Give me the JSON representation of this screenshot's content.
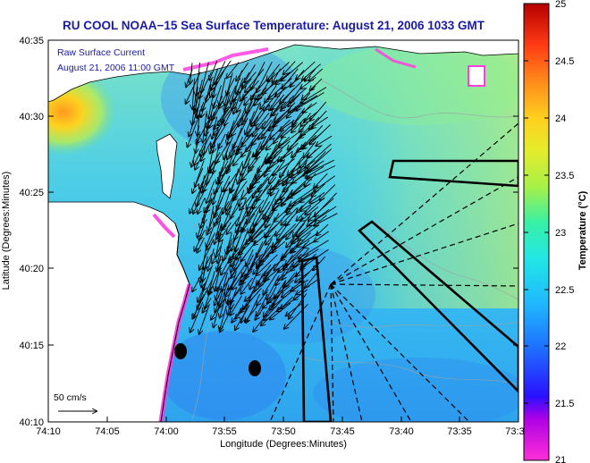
{
  "title": "RU COOL  NOAA−15  Sea Surface Temperature:  August 21, 2006 1033 GMT",
  "legend": {
    "line1": "Raw Surface Current",
    "line2": "August 21, 2006 11:00 GMT"
  },
  "axes": {
    "x_label": "Longitude (Degrees:Minutes)",
    "y_label": "Latitude (Degrees:Minutes)",
    "x_ticks": [
      "74:10",
      "74:05",
      "74:00",
      "73:55",
      "73:50",
      "73:45",
      "73:40",
      "73:35",
      "73:3"
    ],
    "y_ticks": [
      "40:35",
      "40:30",
      "40:25",
      "40:20",
      "40:15",
      "40:10"
    ]
  },
  "scale_arrow": {
    "label": "50 cm/s"
  },
  "colorbar": {
    "label": "Temperature (°C)",
    "ticks": [
      "25",
      "24.5",
      "24",
      "23.5",
      "23",
      "22.5",
      "22",
      "21.5",
      "21"
    ],
    "min": 21,
    "max": 25
  },
  "colors": {
    "title": "#1a1aa6",
    "land": "#ffffff",
    "water_main": "#5dd7ee"
  }
}
